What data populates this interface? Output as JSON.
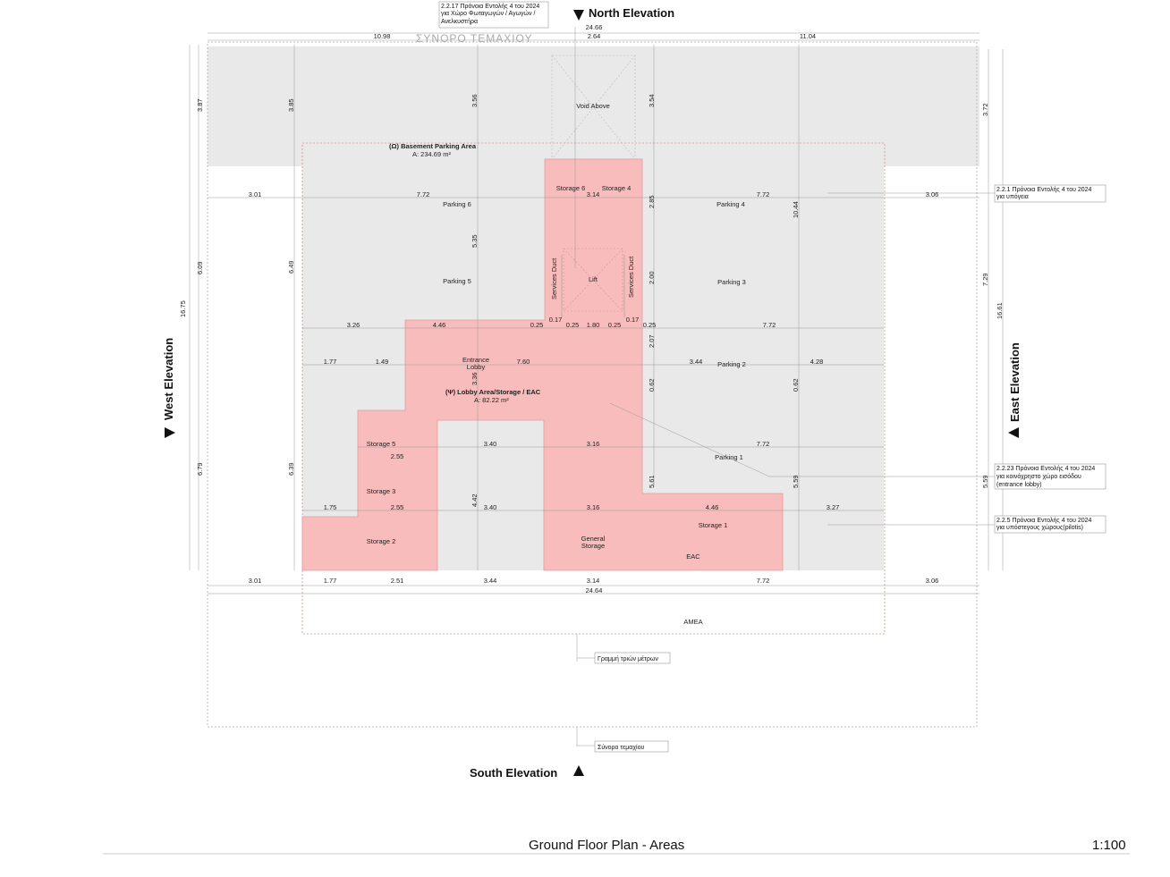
{
  "title": "Ground Floor Plan - Areas",
  "scale": "1:100",
  "elevations": {
    "north": "North Elevation",
    "south": "South Elevation",
    "west": "West Elevation",
    "east": "East Elevation"
  },
  "boundary_label": "ΣΥΝΟΡΟ ΤΕΜΑΧΙΟΥ",
  "areas": {
    "basement": {
      "name": "(Ω) Basement Parking Area",
      "area": "A: 234.69 m²"
    },
    "lobby": {
      "name": "(Ψ) Lobby Area/Storage / EAC",
      "area": "A: 82.22 m²"
    }
  },
  "rooms": {
    "void": "Void Above",
    "storage6": "Storage 6",
    "storage4": "Storage 4",
    "parking6": "Parking 6",
    "parking4": "Parking 4",
    "parking5": "Parking 5",
    "parking3": "Parking 3",
    "services_duct_l": "Services Duct",
    "services_duct_r": "Services Duct",
    "lift": "Lift",
    "entrance_lobby": [
      "Entrance",
      "Lobby"
    ],
    "parking2": "Parking 2",
    "parking1": "Parking 1",
    "storage5": "Storage 5",
    "storage3": "Storage 3",
    "storage2": "Storage 2",
    "general_storage": [
      "General",
      "Storage"
    ],
    "storage1": "Storage 1",
    "eac": "EAC",
    "amea": "ΑΜΕΑ"
  },
  "notes": {
    "n2217": [
      "2.2.17 Πρόνοια Εντολής 4 του 2024",
      "για Χώρο Φωταγωγών / Αγωγών /",
      "Ανελκυστήρα"
    ],
    "n221": [
      "2.2.1 Πρόνοια Εντολής 4 του 2024",
      "για υπόγεια"
    ],
    "n2223": [
      "2.2.23 Πρόνοια Εντολής 4 του 2024",
      "για κοινόχρηστο χώρο εισόδου",
      "(entrance lobby)"
    ],
    "n225": [
      "2.2.5 Πρόνοια Εντολής 4 του 2024",
      "για υπόστεγους χώρους(pilotis)"
    ],
    "three_m": "Γραμμή τριών μέτρων",
    "plot_boundary": "Σύνορο τεμαχίου"
  },
  "dims": {
    "top_total": "24.66",
    "top_a": "10.98",
    "top_b": "2.64",
    "top_c": "11.04",
    "r1a": "3.01",
    "r1b": "7.72",
    "r1c": "3.14",
    "r1d": "7.72",
    "r1e": "3.06",
    "r2a": "3.26",
    "r2b": "4.46",
    "r2c": "0.25",
    "r2d": "0.17",
    "r2e": "0.25",
    "r2f": "1.80",
    "r2g": "0.25",
    "r2h": "0.17",
    "r2i": "0.25",
    "r2j": "7.72",
    "r3a": "1.77",
    "r3b": "1.49",
    "r3c": "7.60",
    "r3d": "3.44",
    "r3e": "4.28",
    "r4a": "2.55",
    "r4b": "3.40",
    "r4c": "3.16",
    "r4d": "7.72",
    "r5a": "1.75",
    "r5b": "2.55",
    "r5c": "3.40",
    "r5d": "3.16",
    "r5e": "4.46",
    "r5f": "3.27",
    "b1": "3.01",
    "b2": "1.77",
    "b3": "2.51",
    "b4": "3.44",
    "b5": "3.14",
    "b6": "7.72",
    "b7": "3.06",
    "b_total": "24.64",
    "v_left_total": "16.75",
    "v_left_a": "3.87",
    "v_left_b": "6.09",
    "v_left_c": "6.79",
    "v_l2_a": "3.85",
    "v_l2_b": "6.49",
    "v_l2_c": "6.39",
    "v_m1": "3.56",
    "v_m2": "5.35",
    "v_m3": "3.36",
    "v_m4": "4.42",
    "v_c1": "3.54",
    "v_c2": "2.85",
    "v_c3": "2.00",
    "v_c4": "2.07",
    "v_c5": "0.62",
    "v_c6": "5.61",
    "v_d1": "10.44",
    "v_d2": "0.62",
    "v_d3": "5.59",
    "v_r_a": "3.72",
    "v_r_b": "7.29",
    "v_r_c": "5.59",
    "v_r_total": "16.61"
  },
  "colors": {
    "lobby_fill": "#f9bcbc",
    "parking_fill": "#e8e8e8",
    "outline_red": "#e08a8a"
  }
}
